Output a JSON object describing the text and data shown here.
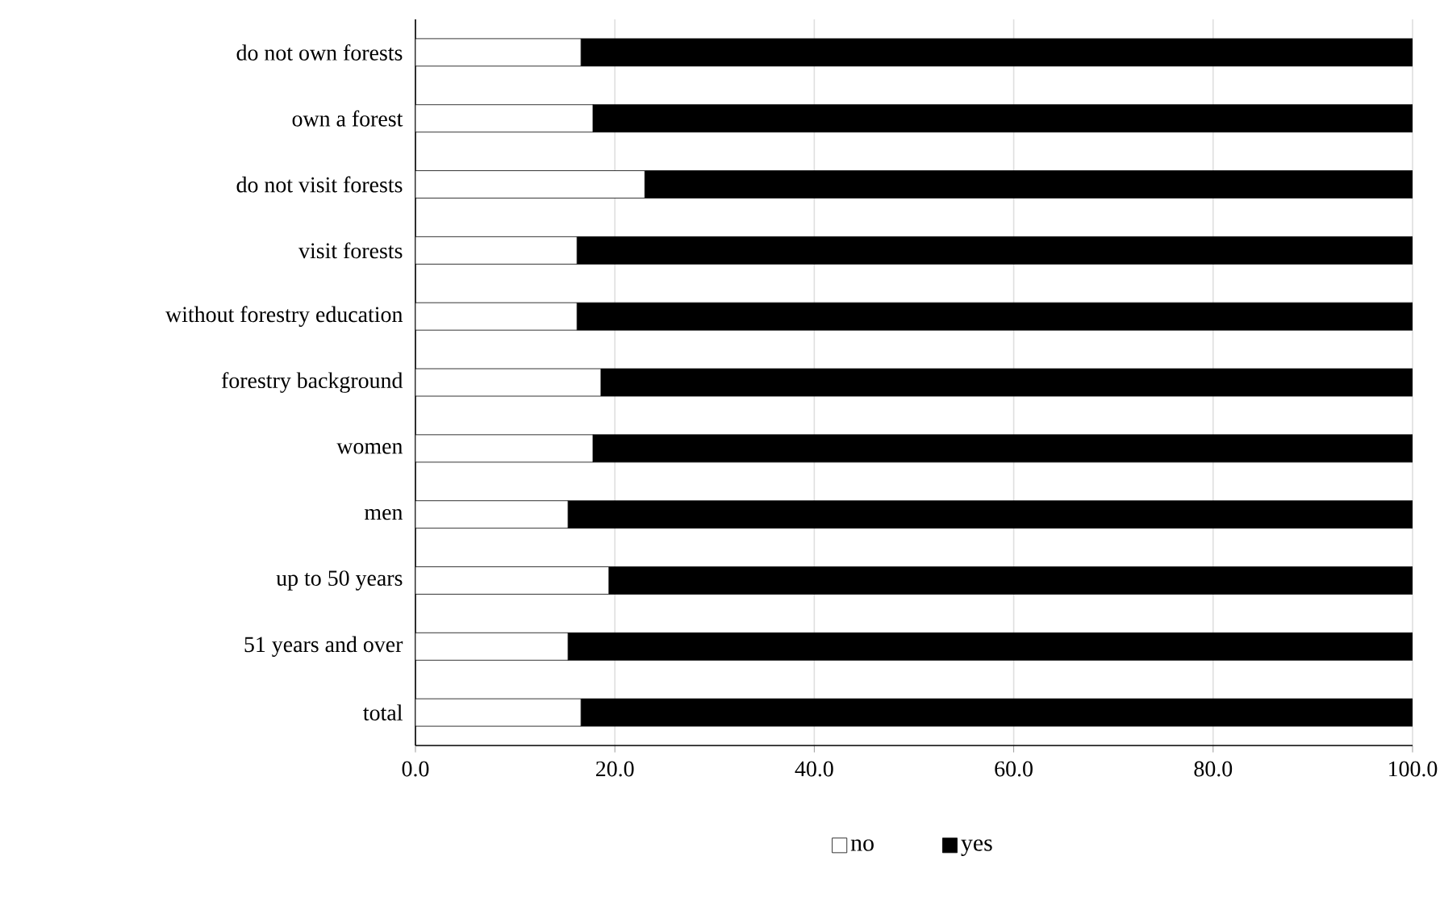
{
  "chart_data": {
    "type": "bar",
    "orientation": "horizontal",
    "stacked": true,
    "categories": [
      "do not own forests",
      "own a forest",
      "do not visit forests",
      "visit forests",
      "without forestry education",
      "forestry background",
      "women",
      "men",
      "up to 50 years",
      "51 years and over",
      "total"
    ],
    "series": [
      {
        "name": "no",
        "color": "#ffffff",
        "values": [
          16.6,
          17.8,
          23.0,
          16.2,
          16.2,
          18.6,
          17.8,
          15.3,
          19.4,
          15.3,
          16.6
        ]
      },
      {
        "name": "yes",
        "color": "#000000",
        "values": [
          83.4,
          82.2,
          77.0,
          83.8,
          83.8,
          81.4,
          82.2,
          84.7,
          80.6,
          84.7,
          83.4
        ]
      }
    ],
    "xlim": [
      0,
      100
    ],
    "xticks": [
      {
        "value": 0,
        "label": "0.0"
      },
      {
        "value": 20,
        "label": "20.0"
      },
      {
        "value": 40,
        "label": "40.0"
      },
      {
        "value": 60,
        "label": "60.0"
      },
      {
        "value": 80,
        "label": "80.0"
      },
      {
        "value": 100,
        "label": "100.0"
      }
    ],
    "grid": "x",
    "legend": "bottom"
  }
}
